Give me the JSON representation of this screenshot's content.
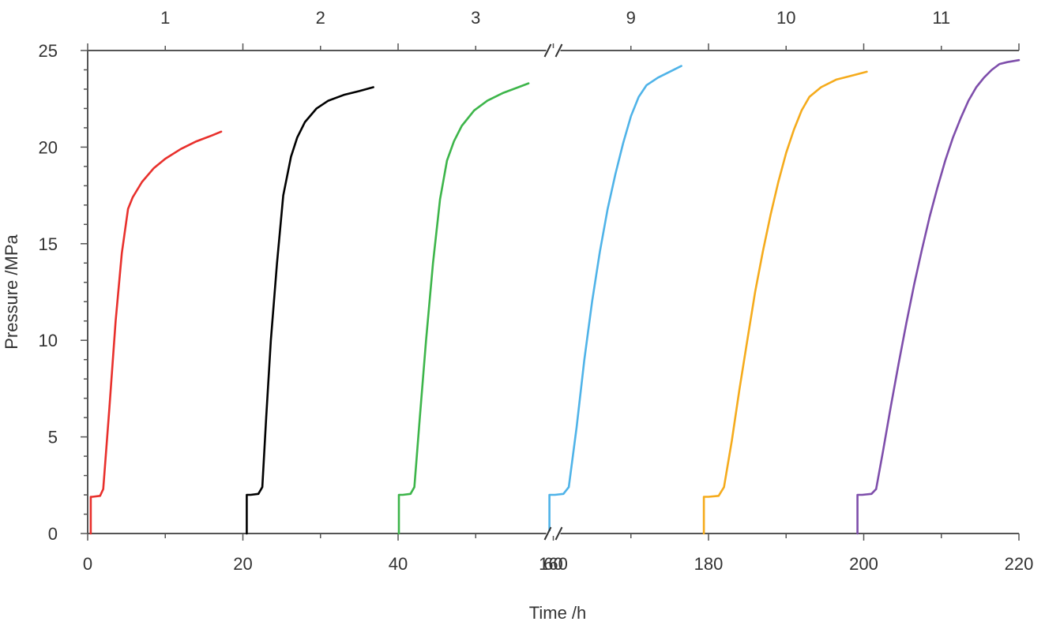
{
  "chart_data": {
    "type": "line",
    "title": "",
    "xlabel": "Time /h",
    "ylabel": "Pressure /MPa",
    "ylim": [
      0,
      25
    ],
    "y_ticks": [
      "0",
      "5",
      "10",
      "15",
      "20",
      "25"
    ],
    "x_axis_break": {
      "segments": [
        [
          0,
          60
        ],
        [
          160,
          220
        ]
      ],
      "symbol": "//"
    },
    "x_tick_labels": [
      "0",
      "20",
      "40",
      "60",
      "160",
      "180",
      "200",
      "220"
    ],
    "top_labels": [
      "1",
      "2",
      "3",
      "9",
      "10",
      "11"
    ],
    "grid": false,
    "series": [
      {
        "name": "1",
        "color": "#e8302c",
        "x": [
          0.4,
          0.4,
          0.6,
          1.6,
          2.0,
          2.8,
          3.6,
          4.4,
          5.2,
          5.8,
          7.0,
          8.5,
          10.0,
          12.0,
          14.0,
          16.0,
          17.2
        ],
        "y": [
          0.0,
          1.9,
          1.9,
          1.95,
          2.3,
          6.5,
          11.0,
          14.5,
          16.8,
          17.4,
          18.2,
          18.9,
          19.4,
          19.9,
          20.3,
          20.6,
          20.8
        ]
      },
      {
        "name": "2",
        "color": "#000000",
        "x": [
          20.5,
          20.5,
          21.0,
          22.0,
          22.5,
          23.0,
          23.6,
          24.4,
          25.2,
          26.2,
          27.0,
          28.0,
          29.5,
          31.0,
          33.0,
          35.0,
          36.8
        ],
        "y": [
          0.0,
          2.0,
          2.0,
          2.05,
          2.4,
          6.0,
          10.0,
          14.0,
          17.5,
          19.5,
          20.5,
          21.3,
          22.0,
          22.4,
          22.7,
          22.9,
          23.1
        ]
      },
      {
        "name": "3",
        "color": "#3db54a",
        "x": [
          40.1,
          40.1,
          40.6,
          41.6,
          42.1,
          42.8,
          43.6,
          44.5,
          45.4,
          46.3,
          47.2,
          48.2,
          49.8,
          51.5,
          53.5,
          55.5,
          56.8
        ],
        "y": [
          0.0,
          2.0,
          2.0,
          2.05,
          2.4,
          6.0,
          10.0,
          14.0,
          17.3,
          19.3,
          20.3,
          21.1,
          21.9,
          22.4,
          22.8,
          23.1,
          23.3
        ]
      },
      {
        "name": "9",
        "color": "#4fb3e8",
        "x": [
          159.5,
          159.5,
          160.2,
          161.3,
          162.0,
          163.0,
          164.0,
          165.0,
          166.0,
          167.0,
          168.0,
          169.0,
          170.0,
          171.0,
          172.0,
          173.5,
          175.0,
          176.5
        ],
        "y": [
          0.0,
          2.0,
          2.0,
          2.05,
          2.4,
          5.5,
          9.0,
          12.0,
          14.6,
          16.8,
          18.6,
          20.2,
          21.6,
          22.6,
          23.2,
          23.6,
          23.9,
          24.2
        ]
      },
      {
        "name": "10",
        "color": "#f5ab1c",
        "x": [
          179.4,
          179.4,
          180.0,
          181.3,
          182.0,
          183.0,
          184.0,
          185.0,
          186.0,
          187.0,
          188.0,
          189.0,
          190.0,
          191.0,
          192.0,
          193.0,
          194.5,
          196.5,
          198.5,
          200.4
        ],
        "y": [
          0.0,
          1.9,
          1.9,
          1.95,
          2.4,
          4.8,
          7.5,
          10.0,
          12.5,
          14.6,
          16.5,
          18.2,
          19.7,
          20.9,
          21.9,
          22.6,
          23.1,
          23.5,
          23.7,
          23.9
        ]
      },
      {
        "name": "11",
        "color": "#7e4eab",
        "x": [
          199.2,
          199.2,
          199.8,
          201.0,
          201.6,
          202.5,
          203.5,
          204.5,
          205.5,
          206.5,
          207.5,
          208.5,
          209.5,
          210.5,
          211.5,
          212.5,
          213.5,
          214.5,
          215.5,
          216.5,
          217.5,
          218.5,
          220.0
        ],
        "y": [
          0.0,
          2.0,
          2.0,
          2.05,
          2.3,
          4.3,
          6.6,
          8.8,
          10.9,
          12.9,
          14.7,
          16.4,
          17.9,
          19.3,
          20.5,
          21.5,
          22.4,
          23.1,
          23.6,
          24.0,
          24.3,
          24.4,
          24.5
        ]
      }
    ]
  }
}
